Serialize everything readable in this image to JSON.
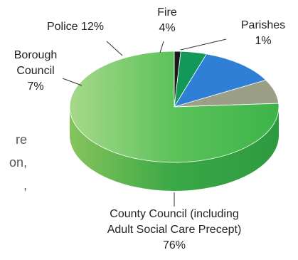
{
  "chart_data": {
    "type": "pie",
    "slices": [
      {
        "label_lines": [
          "County Council (including",
          "Adult Social Care Precept)",
          "76%"
        ],
        "value": 76,
        "color": "#3db54a"
      },
      {
        "label_lines": [
          "Borough",
          "Council",
          "7%"
        ],
        "value": 7,
        "color": "#9a9f86"
      },
      {
        "label_lines": [
          "Police 12%"
        ],
        "value": 12,
        "color": "#2f7fd6"
      },
      {
        "label_lines": [
          "Fire",
          "4%"
        ],
        "value": 4,
        "color": "#12995a"
      },
      {
        "label_lines": [
          "Parishes",
          "1%"
        ],
        "value": 1,
        "color": "#1a1a1a"
      }
    ]
  },
  "background_text": [
    "re",
    "on,",
    ","
  ]
}
